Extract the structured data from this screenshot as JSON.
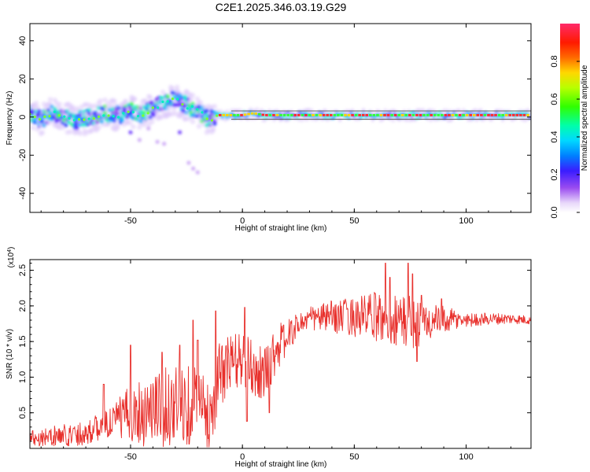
{
  "title": "C2E1.2025.346.03.19.G29",
  "chart_data": [
    {
      "type": "heatmap",
      "name": "spectrogram",
      "xlabel": "Height of straight line (km)",
      "ylabel": "Frequency (Hz)",
      "xlim": [
        -95,
        129
      ],
      "ylim": [
        -50,
        49
      ],
      "xticks": [
        -50,
        0,
        50,
        100
      ],
      "yticks": [
        -40,
        -20,
        0,
        20,
        40
      ],
      "center_line_hz": 1,
      "ridge": [
        {
          "x": -95,
          "y": 1
        },
        {
          "x": -90,
          "y": -1
        },
        {
          "x": -85,
          "y": 2
        },
        {
          "x": -80,
          "y": 0
        },
        {
          "x": -75,
          "y": -2
        },
        {
          "x": -70,
          "y": -1
        },
        {
          "x": -65,
          "y": 1
        },
        {
          "x": -60,
          "y": 2
        },
        {
          "x": -55,
          "y": 1
        },
        {
          "x": -50,
          "y": 3
        },
        {
          "x": -45,
          "y": 1
        },
        {
          "x": -40,
          "y": 5
        },
        {
          "x": -35,
          "y": 8
        },
        {
          "x": -30,
          "y": 9
        },
        {
          "x": -25,
          "y": 6
        },
        {
          "x": -20,
          "y": 3
        },
        {
          "x": -15,
          "y": -1
        },
        {
          "x": -10,
          "y": 1
        },
        {
          "x": 0,
          "y": 1
        },
        {
          "x": 5,
          "y": 2
        },
        {
          "x": 10,
          "y": 1
        },
        {
          "x": 30,
          "y": 1
        },
        {
          "x": 60,
          "y": 1
        },
        {
          "x": 90,
          "y": 1
        },
        {
          "x": 129,
          "y": 1
        }
      ],
      "scatter_blobs": [
        {
          "x": -50,
          "y": -8
        },
        {
          "x": -46,
          "y": -12
        },
        {
          "x": -42,
          "y": -6
        },
        {
          "x": -38,
          "y": -13
        },
        {
          "x": -35,
          "y": -14
        },
        {
          "x": -28,
          "y": -8
        },
        {
          "x": -24,
          "y": -24
        },
        {
          "x": -22,
          "y": -27
        },
        {
          "x": -20,
          "y": -29
        }
      ],
      "colorbar": {
        "label": "Normalized spectral amplitude",
        "range": [
          0,
          1
        ],
        "ticks": [
          0.0,
          0.2,
          0.4,
          0.6,
          0.8
        ],
        "tick_labels": [
          "0.0",
          "0.2",
          "0.4",
          "0.6",
          "0.8"
        ]
      }
    },
    {
      "type": "line",
      "name": "snr",
      "xlabel": "Height of straight line (km)",
      "ylabel": "SNR (10 * v/v)",
      "multiplier": "(x10",
      "multiplier_exp": "4",
      "multiplier_close": ")",
      "color": "#e8302c",
      "xlim": [
        -95,
        129
      ],
      "ylim": [
        0,
        2.65
      ],
      "xticks": [
        -50,
        0,
        50,
        100
      ],
      "yticks": [
        0.5,
        1.0,
        1.5,
        2.0,
        2.5
      ],
      "ytick_labels": [
        "0.5",
        "1.0",
        "1.5",
        "2.0",
        "2.5"
      ],
      "baseline": [
        {
          "x": -95,
          "y": 0.15
        },
        {
          "x": -80,
          "y": 0.18
        },
        {
          "x": -70,
          "y": 0.22
        },
        {
          "x": -60,
          "y": 0.35
        },
        {
          "x": -50,
          "y": 0.5
        },
        {
          "x": -40,
          "y": 0.55
        },
        {
          "x": -30,
          "y": 0.6
        },
        {
          "x": -20,
          "y": 0.65
        },
        {
          "x": -15,
          "y": 0.4
        },
        {
          "x": -10,
          "y": 1.05
        },
        {
          "x": -5,
          "y": 1.2
        },
        {
          "x": 0,
          "y": 1.25
        },
        {
          "x": 5,
          "y": 1.1
        },
        {
          "x": 10,
          "y": 1.05
        },
        {
          "x": 15,
          "y": 1.4
        },
        {
          "x": 20,
          "y": 1.55
        },
        {
          "x": 25,
          "y": 1.75
        },
        {
          "x": 30,
          "y": 1.82
        },
        {
          "x": 40,
          "y": 1.85
        },
        {
          "x": 50,
          "y": 1.85
        },
        {
          "x": 60,
          "y": 1.85
        },
        {
          "x": 70,
          "y": 1.8
        },
        {
          "x": 80,
          "y": 1.75
        },
        {
          "x": 90,
          "y": 1.8
        },
        {
          "x": 100,
          "y": 1.8
        },
        {
          "x": 110,
          "y": 1.82
        },
        {
          "x": 120,
          "y": 1.82
        },
        {
          "x": 129,
          "y": 1.8
        }
      ],
      "noise_amplitude": [
        {
          "x": -95,
          "y": 0.12
        },
        {
          "x": -60,
          "y": 0.2
        },
        {
          "x": -45,
          "y": 0.5
        },
        {
          "x": -25,
          "y": 0.6
        },
        {
          "x": -15,
          "y": 0.5
        },
        {
          "x": 0,
          "y": 0.4
        },
        {
          "x": 15,
          "y": 0.35
        },
        {
          "x": 25,
          "y": 0.15
        },
        {
          "x": 45,
          "y": 0.25
        },
        {
          "x": 60,
          "y": 0.35
        },
        {
          "x": 75,
          "y": 0.4
        },
        {
          "x": 85,
          "y": 0.25
        },
        {
          "x": 100,
          "y": 0.1
        },
        {
          "x": 129,
          "y": 0.06
        }
      ],
      "spikes": [
        {
          "x": -62,
          "y": 0.9
        },
        {
          "x": -50,
          "y": 1.45
        },
        {
          "x": -36,
          "y": 1.35
        },
        {
          "x": -28,
          "y": 1.45
        },
        {
          "x": -22,
          "y": 1.8
        },
        {
          "x": -20,
          "y": 1.52
        },
        {
          "x": -12,
          "y": 1.93
        },
        {
          "x": 1,
          "y": 1.98
        },
        {
          "x": 2,
          "y": 0.38
        },
        {
          "x": 12,
          "y": 0.5
        },
        {
          "x": 64,
          "y": 2.6
        },
        {
          "x": 66,
          "y": 2.4
        },
        {
          "x": 74,
          "y": 2.6
        },
        {
          "x": 76,
          "y": 2.45
        },
        {
          "x": 78,
          "y": 1.22
        },
        {
          "x": 80,
          "y": 2.15
        },
        {
          "x": 89,
          "y": 2.1
        }
      ]
    }
  ]
}
